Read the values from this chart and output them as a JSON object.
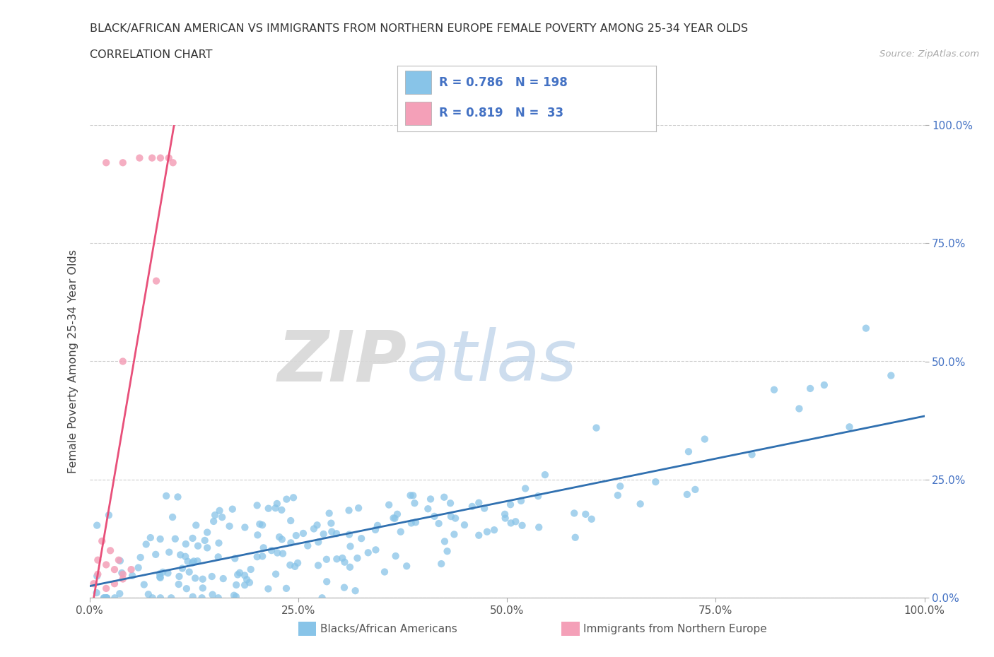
{
  "title_line1": "BLACK/AFRICAN AMERICAN VS IMMIGRANTS FROM NORTHERN EUROPE FEMALE POVERTY AMONG 25-34 YEAR OLDS",
  "title_line2": "CORRELATION CHART",
  "source": "Source: ZipAtlas.com",
  "ylabel": "Female Poverty Among 25-34 Year Olds",
  "blue_R": 0.786,
  "blue_N": 198,
  "pink_R": 0.819,
  "pink_N": 33,
  "blue_color": "#88c4e8",
  "pink_color": "#f4a0b8",
  "blue_line_color": "#3070b0",
  "pink_line_color": "#e8507a",
  "watermark_zip": "ZIP",
  "watermark_atlas": "atlas",
  "legend_label_blue": "Blacks/African Americans",
  "legend_label_pink": "Immigrants from Northern Europe",
  "xlim": [
    0,
    1.0
  ],
  "ylim": [
    0,
    1.0
  ],
  "xtick_positions": [
    0,
    0.25,
    0.5,
    0.75,
    1.0
  ],
  "xtick_labels": [
    "0.0%",
    "25.0%",
    "50.0%",
    "75.0%",
    "100.0%"
  ],
  "ytick_positions": [
    0,
    0.25,
    0.5,
    0.75,
    1.0
  ],
  "ytick_labels_right": [
    "0.0%",
    "25.0%",
    "50.0%",
    "75.0%",
    "100.0%"
  ],
  "background_color": "#ffffff",
  "grid_color": "#cccccc",
  "blue_seed": 42,
  "pink_seed": 99
}
